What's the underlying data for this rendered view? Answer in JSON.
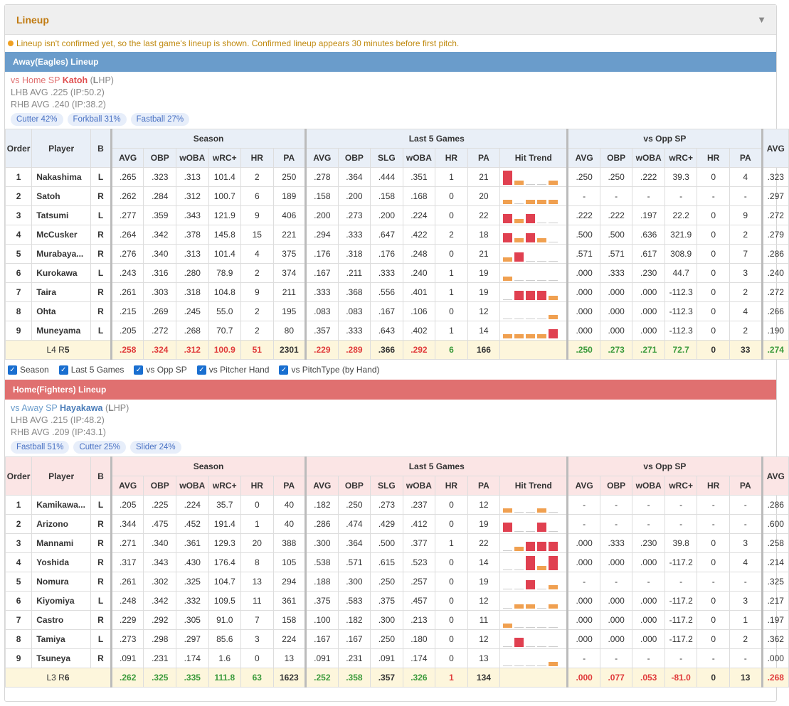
{
  "header": {
    "title": "Lineup",
    "collapse_icon": "triangle-down-icon"
  },
  "notice": "Lineup isn't confirmed yet, so the last game's lineup is shown. Confirmed lineup appears 30 minutes before first pitch.",
  "columns": {
    "order": "Order",
    "player": "Player",
    "hand": "B",
    "groups": {
      "season": "Season",
      "last5": "Last 5 Games",
      "opp": "vs Opp SP"
    },
    "season": [
      "AVG",
      "OBP",
      "wOBA",
      "wRC+",
      "HR",
      "PA"
    ],
    "last5": [
      "AVG",
      "OBP",
      "SLG",
      "wOBA",
      "HR",
      "PA",
      "Hit Trend"
    ],
    "opp": [
      "AVG",
      "OBP",
      "wOBA",
      "wRC+",
      "HR",
      "PA"
    ],
    "extra": "AVG"
  },
  "filters": [
    {
      "label": "Season",
      "checked": true
    },
    {
      "label": "Last 5 Games",
      "checked": true
    },
    {
      "label": "vs Opp SP",
      "checked": true
    },
    {
      "label": "vs Pitcher Hand",
      "checked": true
    },
    {
      "label": "vs PitchType (by Hand)",
      "checked": true
    }
  ],
  "away": {
    "title": "Away(Eagles) Lineup",
    "sp_prefix": "vs Home SP ",
    "sp_name": "Katoh",
    "sp_hand_open": " (",
    "sp_hand_letter": "L",
    "sp_hand_rest": "HP)",
    "lhb": "LHB AVG .225 (IP:50.2)",
    "rhb": "RHB AVG .240 (IP:38.2)",
    "pitches": [
      "Cutter 42%",
      "Forkball 31%",
      "Fastball 27%"
    ],
    "rows": [
      {
        "order": "1",
        "player": "Nakashima",
        "hand": "L",
        "season": [
          ".265",
          ".323",
          ".313",
          "101.4",
          "2",
          "250"
        ],
        "last5": [
          ".278",
          ".364",
          ".444",
          ".351",
          "1",
          "21"
        ],
        "trend": [
          3,
          1,
          0,
          0,
          1
        ],
        "opp": [
          ".250",
          ".250",
          ".222",
          "39.3",
          "0",
          "4"
        ],
        "extra": ".323"
      },
      {
        "order": "2",
        "player": "Satoh",
        "hand": "R",
        "season": [
          ".262",
          ".284",
          ".312",
          "100.7",
          "6",
          "189"
        ],
        "last5": [
          ".158",
          ".200",
          ".158",
          ".168",
          "0",
          "20"
        ],
        "trend": [
          1,
          0,
          1,
          1,
          1
        ],
        "opp": [
          "-",
          "-",
          "-",
          "-",
          "-",
          "-"
        ],
        "extra": ".297"
      },
      {
        "order": "3",
        "player": "Tatsumi",
        "hand": "L",
        "season": [
          ".277",
          ".359",
          ".343",
          "121.9",
          "9",
          "406"
        ],
        "last5": [
          ".200",
          ".273",
          ".200",
          ".224",
          "0",
          "22"
        ],
        "trend": [
          2,
          1,
          2,
          0,
          0
        ],
        "opp": [
          ".222",
          ".222",
          ".197",
          "22.2",
          "0",
          "9"
        ],
        "extra": ".272"
      },
      {
        "order": "4",
        "player": "McCusker",
        "hand": "R",
        "season": [
          ".264",
          ".342",
          ".378",
          "145.8",
          "15",
          "221"
        ],
        "last5": [
          ".294",
          ".333",
          ".647",
          ".422",
          "2",
          "18"
        ],
        "trend": [
          2,
          1,
          2,
          1,
          0
        ],
        "opp": [
          ".500",
          ".500",
          ".636",
          "321.9",
          "0",
          "2"
        ],
        "extra": ".279"
      },
      {
        "order": "5",
        "player": "Murabaya...",
        "hand": "R",
        "season": [
          ".276",
          ".340",
          ".313",
          "101.4",
          "4",
          "375"
        ],
        "last5": [
          ".176",
          ".318",
          ".176",
          ".248",
          "0",
          "21"
        ],
        "trend": [
          1,
          2,
          0,
          0,
          0
        ],
        "opp": [
          ".571",
          ".571",
          ".617",
          "308.9",
          "0",
          "7"
        ],
        "extra": ".286"
      },
      {
        "order": "6",
        "player": "Kurokawa",
        "hand": "L",
        "season": [
          ".243",
          ".316",
          ".280",
          "78.9",
          "2",
          "374"
        ],
        "last5": [
          ".167",
          ".211",
          ".333",
          ".240",
          "1",
          "19"
        ],
        "trend": [
          1,
          0,
          0,
          0,
          0
        ],
        "opp": [
          ".000",
          ".333",
          ".230",
          "44.7",
          "0",
          "3"
        ],
        "extra": ".240"
      },
      {
        "order": "7",
        "player": "Taira",
        "hand": "R",
        "season": [
          ".261",
          ".303",
          ".318",
          "104.8",
          "9",
          "211"
        ],
        "last5": [
          ".333",
          ".368",
          ".556",
          ".401",
          "1",
          "19"
        ],
        "trend": [
          0,
          2,
          2,
          2,
          1
        ],
        "opp": [
          ".000",
          ".000",
          ".000",
          "-112.3",
          "0",
          "2"
        ],
        "extra": ".272"
      },
      {
        "order": "8",
        "player": "Ohta",
        "hand": "R",
        "season": [
          ".215",
          ".269",
          ".245",
          "55.0",
          "2",
          "195"
        ],
        "last5": [
          ".083",
          ".083",
          ".167",
          ".106",
          "0",
          "12"
        ],
        "trend": [
          0,
          0,
          0,
          0,
          1
        ],
        "opp": [
          ".000",
          ".000",
          ".000",
          "-112.3",
          "0",
          "4"
        ],
        "extra": ".266"
      },
      {
        "order": "9",
        "player": "Muneyama",
        "hand": "L",
        "season": [
          ".205",
          ".272",
          ".268",
          "70.7",
          "2",
          "80"
        ],
        "last5": [
          ".357",
          ".333",
          ".643",
          ".402",
          "1",
          "14"
        ],
        "trend": [
          1,
          1,
          1,
          1,
          2
        ],
        "opp": [
          ".000",
          ".000",
          ".000",
          "-112.3",
          "0",
          "2"
        ],
        "extra": ".190"
      }
    ],
    "total": {
      "label_prefix": "L4 R",
      "label_num": "5",
      "season": [
        ".258",
        ".324",
        ".312",
        "100.9",
        "51",
        "2301"
      ],
      "season_colors": [
        "red",
        "red",
        "red",
        "red",
        "red",
        ""
      ],
      "last5": [
        ".229",
        ".289",
        ".366",
        ".292",
        "6",
        "166"
      ],
      "last5_colors": [
        "red",
        "red",
        "",
        "red",
        "green",
        ""
      ],
      "opp": [
        ".250",
        ".273",
        ".271",
        "72.7",
        "0",
        "33"
      ],
      "opp_colors": [
        "green",
        "green",
        "green",
        "green",
        "",
        ""
      ],
      "extra": ".274",
      "extra_color": "green"
    }
  },
  "home": {
    "title": "Home(Fighters) Lineup",
    "sp_prefix": "vs Away SP ",
    "sp_name": "Hayakawa",
    "sp_hand_open": " (",
    "sp_hand_letter": "L",
    "sp_hand_rest": "HP)",
    "lhb": "LHB AVG .215 (IP:48.2)",
    "rhb": "RHB AVG .209 (IP:43.1)",
    "pitches": [
      "Fastball 51%",
      "Cutter 25%",
      "Slider 24%"
    ],
    "rows": [
      {
        "order": "1",
        "player": "Kamikawa...",
        "hand": "L",
        "season": [
          ".205",
          ".225",
          ".224",
          "35.7",
          "0",
          "40"
        ],
        "last5": [
          ".182",
          ".250",
          ".273",
          ".237",
          "0",
          "12"
        ],
        "trend": [
          1,
          0,
          0,
          1,
          0
        ],
        "opp": [
          "-",
          "-",
          "-",
          "-",
          "-",
          "-"
        ],
        "extra": ".286"
      },
      {
        "order": "2",
        "player": "Arizono",
        "hand": "R",
        "season": [
          ".344",
          ".475",
          ".452",
          "191.4",
          "1",
          "40"
        ],
        "last5": [
          ".286",
          ".474",
          ".429",
          ".412",
          "0",
          "19"
        ],
        "trend": [
          2,
          0,
          0,
          2,
          0
        ],
        "opp": [
          "-",
          "-",
          "-",
          "-",
          "-",
          "-"
        ],
        "extra": ".600"
      },
      {
        "order": "3",
        "player": "Mannami",
        "hand": "R",
        "season": [
          ".271",
          ".340",
          ".361",
          "129.3",
          "20",
          "388"
        ],
        "last5": [
          ".300",
          ".364",
          ".500",
          ".377",
          "1",
          "22"
        ],
        "trend": [
          0,
          1,
          2,
          2,
          2
        ],
        "opp": [
          ".000",
          ".333",
          ".230",
          "39.8",
          "0",
          "3"
        ],
        "extra": ".258"
      },
      {
        "order": "4",
        "player": "Yoshida",
        "hand": "R",
        "season": [
          ".317",
          ".343",
          ".430",
          "176.4",
          "8",
          "105"
        ],
        "last5": [
          ".538",
          ".571",
          ".615",
          ".523",
          "0",
          "14"
        ],
        "trend": [
          0,
          0,
          3,
          1,
          3
        ],
        "opp": [
          ".000",
          ".000",
          ".000",
          "-117.2",
          "0",
          "4"
        ],
        "extra": ".214"
      },
      {
        "order": "5",
        "player": "Nomura",
        "hand": "R",
        "season": [
          ".261",
          ".302",
          ".325",
          "104.7",
          "13",
          "294"
        ],
        "last5": [
          ".188",
          ".300",
          ".250",
          ".257",
          "0",
          "19"
        ],
        "trend": [
          0,
          0,
          2,
          0,
          1
        ],
        "opp": [
          "-",
          "-",
          "-",
          "-",
          "-",
          "-"
        ],
        "extra": ".325"
      },
      {
        "order": "6",
        "player": "Kiyomiya",
        "hand": "L",
        "season": [
          ".248",
          ".342",
          ".332",
          "109.5",
          "11",
          "361"
        ],
        "last5": [
          ".375",
          ".583",
          ".375",
          ".457",
          "0",
          "12"
        ],
        "trend": [
          0,
          1,
          1,
          0,
          1
        ],
        "opp": [
          ".000",
          ".000",
          ".000",
          "-117.2",
          "0",
          "3"
        ],
        "extra": ".217"
      },
      {
        "order": "7",
        "player": "Castro",
        "hand": "R",
        "season": [
          ".229",
          ".292",
          ".305",
          "91.0",
          "7",
          "158"
        ],
        "last5": [
          ".100",
          ".182",
          ".300",
          ".213",
          "0",
          "11"
        ],
        "trend": [
          1,
          0,
          0,
          0,
          0
        ],
        "opp": [
          ".000",
          ".000",
          ".000",
          "-117.2",
          "0",
          "1"
        ],
        "extra": ".197"
      },
      {
        "order": "8",
        "player": "Tamiya",
        "hand": "L",
        "season": [
          ".273",
          ".298",
          ".297",
          "85.6",
          "3",
          "224"
        ],
        "last5": [
          ".167",
          ".167",
          ".250",
          ".180",
          "0",
          "12"
        ],
        "trend": [
          0,
          2,
          0,
          0,
          0
        ],
        "opp": [
          ".000",
          ".000",
          ".000",
          "-117.2",
          "0",
          "2"
        ],
        "extra": ".362"
      },
      {
        "order": "9",
        "player": "Tsuneya",
        "hand": "R",
        "season": [
          ".091",
          ".231",
          ".174",
          "1.6",
          "0",
          "13"
        ],
        "last5": [
          ".091",
          ".231",
          ".091",
          ".174",
          "0",
          "13"
        ],
        "trend": [
          0,
          0,
          0,
          0,
          1
        ],
        "opp": [
          "-",
          "-",
          "-",
          "-",
          "-",
          "-"
        ],
        "extra": ".000"
      }
    ],
    "total": {
      "label_prefix": "L3 R",
      "label_num": "6",
      "season": [
        ".262",
        ".325",
        ".335",
        "111.8",
        "63",
        "1623"
      ],
      "season_colors": [
        "green",
        "green",
        "green",
        "green",
        "green",
        ""
      ],
      "last5": [
        ".252",
        ".358",
        ".357",
        ".326",
        "1",
        "134"
      ],
      "last5_colors": [
        "green",
        "green",
        "",
        "green",
        "red",
        ""
      ],
      "opp": [
        ".000",
        ".077",
        ".053",
        "-81.0",
        "0",
        "13"
      ],
      "opp_colors": [
        "red",
        "red",
        "red",
        "red",
        "",
        ""
      ],
      "extra": ".268",
      "extra_color": "red"
    }
  }
}
